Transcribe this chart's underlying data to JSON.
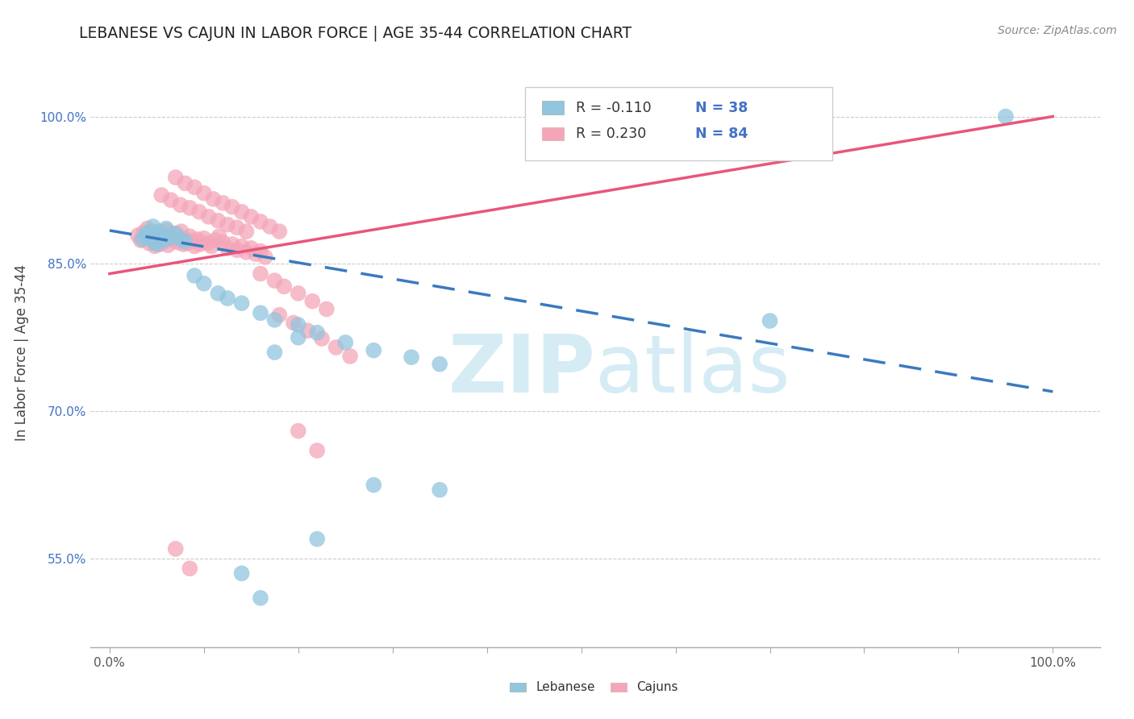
{
  "title": "LEBANESE VS CAJUN IN LABOR FORCE | AGE 35-44 CORRELATION CHART",
  "source": "Source: ZipAtlas.com",
  "ylabel": "In Labor Force | Age 35-44",
  "legend_r1": "R = -0.110",
  "legend_n1": "N = 38",
  "legend_r2": "R = 0.230",
  "legend_n2": "N = 84",
  "legend_bottom": [
    "Lebanese",
    "Cajuns"
  ],
  "color_blue": "#92c5de",
  "color_pink": "#f4a6b8",
  "line_blue": "#3a7abf",
  "line_pink": "#e8567a",
  "watermark_color": "#d6ecf5",
  "ytick_color": "#4472c4",
  "blue_x": [
    0.035,
    0.038,
    0.04,
    0.042,
    0.044,
    0.046,
    0.048,
    0.05,
    0.052,
    0.055,
    0.058,
    0.06,
    0.065,
    0.07,
    0.075,
    0.08,
    0.09,
    0.1,
    0.115,
    0.125,
    0.14,
    0.16,
    0.175,
    0.2,
    0.22,
    0.25,
    0.28,
    0.32,
    0.35,
    0.14,
    0.16,
    0.175,
    0.2,
    0.22,
    0.28,
    0.35,
    0.95,
    0.7
  ],
  "blue_y": [
    0.875,
    0.88,
    0.878,
    0.882,
    0.876,
    0.888,
    0.872,
    0.87,
    0.883,
    0.879,
    0.874,
    0.886,
    0.877,
    0.881,
    0.875,
    0.873,
    0.838,
    0.83,
    0.82,
    0.815,
    0.81,
    0.8,
    0.793,
    0.788,
    0.78,
    0.77,
    0.762,
    0.755,
    0.748,
    0.535,
    0.51,
    0.76,
    0.775,
    0.57,
    0.625,
    0.62,
    1.0,
    0.792
  ],
  "pink_x": [
    0.03,
    0.033,
    0.036,
    0.038,
    0.04,
    0.042,
    0.044,
    0.046,
    0.048,
    0.05,
    0.052,
    0.054,
    0.056,
    0.058,
    0.06,
    0.062,
    0.064,
    0.066,
    0.068,
    0.07,
    0.072,
    0.074,
    0.076,
    0.078,
    0.08,
    0.082,
    0.085,
    0.088,
    0.09,
    0.093,
    0.096,
    0.1,
    0.104,
    0.108,
    0.112,
    0.116,
    0.12,
    0.125,
    0.13,
    0.135,
    0.14,
    0.145,
    0.15,
    0.155,
    0.16,
    0.165,
    0.055,
    0.065,
    0.075,
    0.085,
    0.095,
    0.105,
    0.115,
    0.125,
    0.135,
    0.145,
    0.07,
    0.08,
    0.09,
    0.1,
    0.11,
    0.12,
    0.13,
    0.14,
    0.15,
    0.16,
    0.17,
    0.18,
    0.16,
    0.175,
    0.185,
    0.2,
    0.215,
    0.23,
    0.18,
    0.195,
    0.21,
    0.225,
    0.24,
    0.255,
    0.07,
    0.085,
    0.2,
    0.22
  ],
  "pink_y": [
    0.879,
    0.874,
    0.882,
    0.877,
    0.886,
    0.871,
    0.883,
    0.876,
    0.868,
    0.88,
    0.875,
    0.87,
    0.878,
    0.873,
    0.884,
    0.869,
    0.876,
    0.881,
    0.874,
    0.879,
    0.872,
    0.877,
    0.883,
    0.87,
    0.876,
    0.871,
    0.878,
    0.873,
    0.868,
    0.875,
    0.87,
    0.876,
    0.871,
    0.868,
    0.874,
    0.878,
    0.872,
    0.866,
    0.87,
    0.864,
    0.868,
    0.862,
    0.866,
    0.86,
    0.863,
    0.857,
    0.92,
    0.915,
    0.91,
    0.907,
    0.903,
    0.898,
    0.894,
    0.89,
    0.887,
    0.883,
    0.938,
    0.932,
    0.928,
    0.922,
    0.916,
    0.912,
    0.908,
    0.903,
    0.898,
    0.893,
    0.888,
    0.883,
    0.84,
    0.833,
    0.827,
    0.82,
    0.812,
    0.804,
    0.798,
    0.79,
    0.782,
    0.774,
    0.765,
    0.756,
    0.56,
    0.54,
    0.68,
    0.66
  ],
  "blue_line_x0": 0.0,
  "blue_line_y0": 0.884,
  "blue_line_x1": 1.0,
  "blue_line_y1": 0.72,
  "pink_line_x0": 0.0,
  "pink_line_y0": 0.84,
  "pink_line_x1": 1.0,
  "pink_line_y1": 1.0,
  "xlim": [
    -0.02,
    1.05
  ],
  "ylim": [
    0.46,
    1.06
  ],
  "yticks": [
    0.55,
    0.7,
    0.85,
    1.0
  ],
  "ytick_labels": [
    "55.0%",
    "70.0%",
    "85.0%",
    "100.0%"
  ],
  "xtick_labels": [
    "0.0%",
    "100.0%"
  ]
}
